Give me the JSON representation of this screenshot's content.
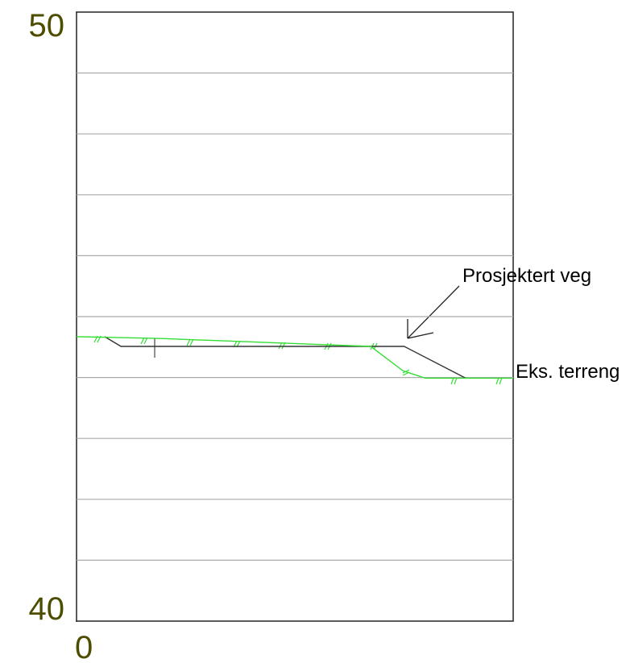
{
  "chart_data": {
    "type": "line",
    "xlim": [
      0,
      7.17
    ],
    "xticks": [
      0
    ],
    "ylim": [
      40,
      50
    ],
    "yticks": [
      40,
      50
    ],
    "grid_lines": [
      41,
      42,
      43,
      44,
      45,
      46,
      47,
      48,
      49
    ],
    "series": [
      {
        "name": "Prosjektert veg",
        "color": "#333333",
        "x": [
          0.46,
          0.73,
          5.38,
          6.39
        ],
        "values": [
          44.67,
          44.51,
          44.51,
          43.99
        ]
      },
      {
        "name": "Eks. terreng",
        "color": "#33dd33",
        "x": [
          0,
          1.39,
          4.83,
          5.36,
          5.73,
          7.17
        ],
        "values": [
          44.67,
          44.64,
          44.51,
          44.11,
          43.99,
          43.99
        ]
      }
    ]
  }
}
